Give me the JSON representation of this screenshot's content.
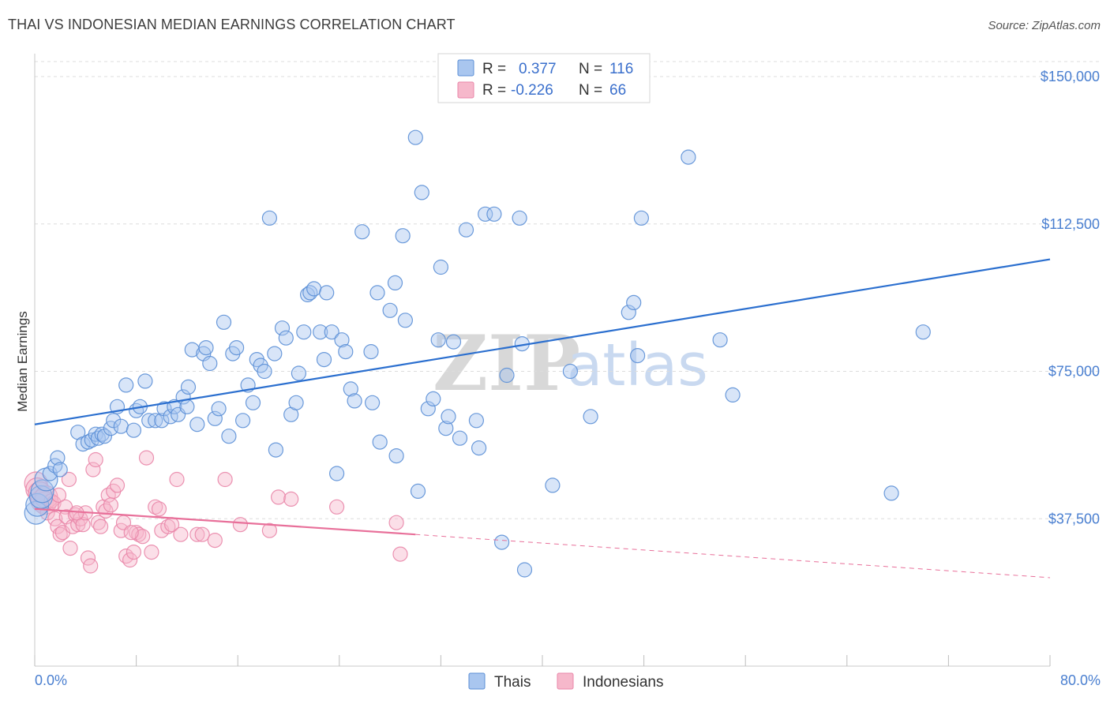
{
  "title": "THAI VS INDONESIAN MEDIAN EARNINGS CORRELATION CHART",
  "source": "Source: ZipAtlas.com",
  "watermark": {
    "zip": "ZIP",
    "atlas": "atlas"
  },
  "colors": {
    "thais_fill": "#a9c6ef",
    "thais_stroke": "#5b8fd6",
    "thais_line": "#2b6fcf",
    "indo_fill": "#f6b8cb",
    "indo_stroke": "#e986a8",
    "indo_line": "#e8709a",
    "axis_text": "#4a7fd0",
    "grid": "#dddddd"
  },
  "legend": {
    "rows": [
      {
        "r_label": "R =",
        "r_value": "0.377",
        "n_label": "N =",
        "n_value": "116"
      },
      {
        "r_label": "R =",
        "r_value": "-0.226",
        "n_label": "N =",
        "n_value": "66"
      }
    ]
  },
  "chart_data": {
    "type": "scatter",
    "title": "THAI VS INDONESIAN MEDIAN EARNINGS CORRELATION CHART",
    "xlabel": "",
    "ylabel": "Median Earnings",
    "xlim": [
      0,
      80
    ],
    "ylim": [
      0,
      157500
    ],
    "x_tick_labels": {
      "left": "0.0%",
      "right": "80.0%"
    },
    "y_ticks": [
      {
        "value": 37500,
        "label": "$37,500"
      },
      {
        "value": 75000,
        "label": "$75,000"
      },
      {
        "value": 112500,
        "label": "$112,500"
      },
      {
        "value": 150000,
        "label": "$150,000"
      }
    ],
    "x_minor_ticks": [
      0,
      8,
      16,
      24,
      32,
      40,
      48,
      56,
      64,
      72,
      80
    ],
    "grid": true,
    "legend_position": "top-center",
    "series": [
      {
        "name": "Thais",
        "r": 0.377,
        "n": 116,
        "trend": {
          "x0": 0,
          "y0": 61500,
          "x1": 80,
          "y1": 103500
        },
        "points": [
          [
            0.1,
            39000
          ],
          [
            0.2,
            41000
          ],
          [
            0.5,
            43000
          ],
          [
            0.6,
            44500
          ],
          [
            0.9,
            47500
          ],
          [
            1.2,
            49000
          ],
          [
            1.6,
            51000
          ],
          [
            1.8,
            53000
          ],
          [
            2.0,
            50000
          ],
          [
            3.4,
            59500
          ],
          [
            3.8,
            56500
          ],
          [
            4.2,
            57000
          ],
          [
            4.5,
            57500
          ],
          [
            4.8,
            59000
          ],
          [
            5.0,
            58000
          ],
          [
            5.3,
            59000
          ],
          [
            5.5,
            58500
          ],
          [
            6.0,
            60500
          ],
          [
            6.2,
            62500
          ],
          [
            6.5,
            66000
          ],
          [
            6.8,
            61000
          ],
          [
            7.2,
            71500
          ],
          [
            7.8,
            60000
          ],
          [
            8.0,
            65000
          ],
          [
            8.3,
            66000
          ],
          [
            8.7,
            72500
          ],
          [
            9.0,
            62500
          ],
          [
            9.5,
            62500
          ],
          [
            10.0,
            62500
          ],
          [
            10.2,
            65500
          ],
          [
            10.7,
            63500
          ],
          [
            11.0,
            66000
          ],
          [
            11.3,
            64000
          ],
          [
            11.7,
            68500
          ],
          [
            12.0,
            66000
          ],
          [
            12.1,
            71000
          ],
          [
            12.4,
            80500
          ],
          [
            12.8,
            61500
          ],
          [
            13.3,
            79500
          ],
          [
            13.5,
            81000
          ],
          [
            13.8,
            77000
          ],
          [
            14.2,
            63000
          ],
          [
            14.5,
            65500
          ],
          [
            14.9,
            87500
          ],
          [
            15.3,
            58500
          ],
          [
            15.6,
            79500
          ],
          [
            15.9,
            81000
          ],
          [
            16.4,
            62500
          ],
          [
            16.8,
            71500
          ],
          [
            17.2,
            67000
          ],
          [
            17.5,
            78000
          ],
          [
            17.8,
            76500
          ],
          [
            18.1,
            75000
          ],
          [
            18.5,
            114000
          ],
          [
            18.9,
            79500
          ],
          [
            19.0,
            55000
          ],
          [
            19.5,
            86000
          ],
          [
            19.8,
            83500
          ],
          [
            20.2,
            64000
          ],
          [
            20.6,
            67000
          ],
          [
            20.8,
            74500
          ],
          [
            21.2,
            85000
          ],
          [
            21.5,
            94500
          ],
          [
            21.7,
            95000
          ],
          [
            22.0,
            96000
          ],
          [
            22.5,
            85000
          ],
          [
            22.8,
            78000
          ],
          [
            23.0,
            95000
          ],
          [
            23.4,
            85000
          ],
          [
            23.8,
            49000
          ],
          [
            24.2,
            83000
          ],
          [
            24.5,
            80000
          ],
          [
            24.9,
            70500
          ],
          [
            25.2,
            67500
          ],
          [
            25.8,
            110500
          ],
          [
            26.5,
            80000
          ],
          [
            26.6,
            67000
          ],
          [
            27.0,
            95000
          ],
          [
            27.2,
            57000
          ],
          [
            28.0,
            90500
          ],
          [
            28.4,
            97500
          ],
          [
            28.5,
            53500
          ],
          [
            29.0,
            109500
          ],
          [
            29.2,
            88000
          ],
          [
            30.0,
            134500
          ],
          [
            30.2,
            44500
          ],
          [
            30.5,
            120500
          ],
          [
            31.0,
            65500
          ],
          [
            31.4,
            68000
          ],
          [
            31.8,
            83000
          ],
          [
            32.0,
            101500
          ],
          [
            32.4,
            60500
          ],
          [
            32.6,
            63500
          ],
          [
            33.0,
            82500
          ],
          [
            33.5,
            58000
          ],
          [
            34.0,
            111000
          ],
          [
            34.8,
            62500
          ],
          [
            35.0,
            55500
          ],
          [
            35.5,
            115000
          ],
          [
            36.2,
            115000
          ],
          [
            36.8,
            31500
          ],
          [
            37.2,
            74000
          ],
          [
            38.2,
            114000
          ],
          [
            38.4,
            82000
          ],
          [
            38.6,
            24500
          ],
          [
            40.8,
            46000
          ],
          [
            42.2,
            75000
          ],
          [
            43.8,
            63500
          ],
          [
            46.8,
            90000
          ],
          [
            47.2,
            92500
          ],
          [
            47.5,
            79000
          ],
          [
            47.8,
            114000
          ],
          [
            51.5,
            129500
          ],
          [
            54.0,
            83000
          ],
          [
            55.0,
            69000
          ],
          [
            67.5,
            44000
          ],
          [
            70.0,
            85000
          ]
        ]
      },
      {
        "name": "Indonesians",
        "r": -0.226,
        "n": 66,
        "trend": {
          "x0": 0,
          "y0": 40000,
          "x1": 30,
          "y1": 33500
        },
        "trend_extended": {
          "x0": 30,
          "y0": 33500,
          "x1": 80,
          "y1": 22500
        },
        "points": [
          [
            0.1,
            46500
          ],
          [
            0.2,
            45000
          ],
          [
            0.4,
            44000
          ],
          [
            0.6,
            42000
          ],
          [
            0.8,
            41500
          ],
          [
            0.9,
            43000
          ],
          [
            1.0,
            39000
          ],
          [
            1.3,
            42000
          ],
          [
            1.5,
            41500
          ],
          [
            1.6,
            37500
          ],
          [
            1.8,
            35500
          ],
          [
            1.9,
            43500
          ],
          [
            2.0,
            33500
          ],
          [
            2.2,
            34000
          ],
          [
            2.4,
            40500
          ],
          [
            2.5,
            38000
          ],
          [
            2.7,
            47500
          ],
          [
            2.8,
            30000
          ],
          [
            3.0,
            35500
          ],
          [
            3.2,
            38500
          ],
          [
            3.4,
            36000
          ],
          [
            3.6,
            37500
          ],
          [
            3.8,
            36000
          ],
          [
            4.0,
            39000
          ],
          [
            4.2,
            27500
          ],
          [
            4.4,
            25500
          ],
          [
            4.6,
            50000
          ],
          [
            4.8,
            52500
          ],
          [
            5.0,
            36500
          ],
          [
            5.2,
            35500
          ],
          [
            5.4,
            40500
          ],
          [
            5.6,
            39500
          ],
          [
            5.8,
            43500
          ],
          [
            6.0,
            41000
          ],
          [
            6.2,
            44500
          ],
          [
            6.5,
            46000
          ],
          [
            6.8,
            34500
          ],
          [
            7.0,
            36500
          ],
          [
            7.2,
            28000
          ],
          [
            7.5,
            27000
          ],
          [
            7.8,
            29000
          ],
          [
            8.0,
            34000
          ],
          [
            8.2,
            33500
          ],
          [
            8.5,
            33000
          ],
          [
            8.8,
            53000
          ],
          [
            9.2,
            29000
          ],
          [
            9.5,
            40500
          ],
          [
            9.8,
            40000
          ],
          [
            10.0,
            34500
          ],
          [
            10.5,
            35500
          ],
          [
            10.8,
            36000
          ],
          [
            11.2,
            47500
          ],
          [
            11.5,
            33500
          ],
          [
            12.8,
            33500
          ],
          [
            13.2,
            33500
          ],
          [
            14.2,
            32000
          ],
          [
            15.0,
            47500
          ],
          [
            16.2,
            36000
          ],
          [
            18.5,
            34500
          ],
          [
            19.2,
            43000
          ],
          [
            20.2,
            42500
          ],
          [
            23.8,
            40500
          ],
          [
            28.5,
            36500
          ],
          [
            28.8,
            28500
          ],
          [
            3.3,
            39000
          ],
          [
            7.6,
            34000
          ]
        ]
      }
    ]
  },
  "bottom_legend": [
    {
      "label": "Thais"
    },
    {
      "label": "Indonesians"
    }
  ]
}
